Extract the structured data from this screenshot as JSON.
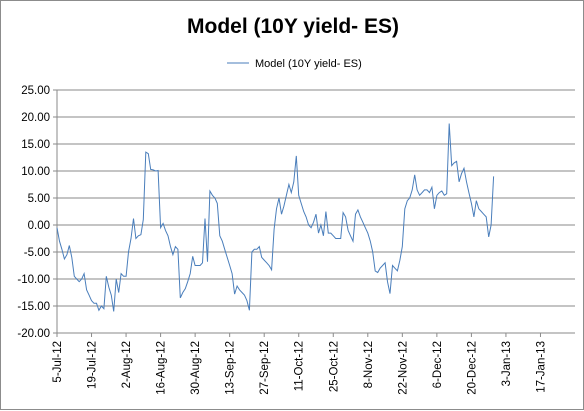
{
  "chart_data": {
    "type": "line",
    "title": "Model (10Y yield- ES)",
    "xlabel": "",
    "ylabel": "",
    "ylim": [
      -20,
      25
    ],
    "yticks": [
      "25.00",
      "20.00",
      "15.00",
      "10.00",
      "5.00",
      "0.00",
      "-5.00",
      "-10.00",
      "-15.00",
      "-20.00"
    ],
    "xtick_labels": [
      "5-Jul-12",
      "19-Jul-12",
      "2-Aug-12",
      "16-Aug-12",
      "30-Aug-12",
      "13-Sep-12",
      "27-Sep-12",
      "11-Oct-12",
      "25-Oct-12",
      "8-Nov-12",
      "22-Nov-12",
      "6-Dec-12",
      "20-Dec-12",
      "3-Jan-13",
      "17-Jan-13"
    ],
    "x_range": [
      "2012-07-05",
      "2013-01-31"
    ],
    "grid": "horizontal",
    "legend_position": "top-center",
    "series": [
      {
        "name": "Model (10Y yield- ES)",
        "color": "#4a7ebb",
        "points": [
          [
            "2012-07-05",
            -0.5
          ],
          [
            "2012-07-06",
            -3.0
          ],
          [
            "2012-07-07",
            -4.5
          ],
          [
            "2012-07-08",
            -6.3
          ],
          [
            "2012-07-09",
            -5.5
          ],
          [
            "2012-07-10",
            -3.8
          ],
          [
            "2012-07-11",
            -6.0
          ],
          [
            "2012-07-12",
            -9.5
          ],
          [
            "2012-07-13",
            -10.0
          ],
          [
            "2012-07-14",
            -10.5
          ],
          [
            "2012-07-15",
            -10.0
          ],
          [
            "2012-07-16",
            -9.0
          ],
          [
            "2012-07-17",
            -12.0
          ],
          [
            "2012-07-18",
            -13.0
          ],
          [
            "2012-07-19",
            -14.0
          ],
          [
            "2012-07-20",
            -14.5
          ],
          [
            "2012-07-21",
            -14.5
          ],
          [
            "2012-07-22",
            -15.8
          ],
          [
            "2012-07-23",
            -15.0
          ],
          [
            "2012-07-24",
            -15.5
          ],
          [
            "2012-07-25",
            -9.5
          ],
          [
            "2012-07-26",
            -11.5
          ],
          [
            "2012-07-27",
            -13.0
          ],
          [
            "2012-07-28",
            -16.0
          ],
          [
            "2012-07-29",
            -10.0
          ],
          [
            "2012-07-30",
            -12.5
          ],
          [
            "2012-07-31",
            -9.0
          ],
          [
            "2012-08-01",
            -9.5
          ],
          [
            "2012-08-02",
            -9.5
          ],
          [
            "2012-08-03",
            -5.0
          ],
          [
            "2012-08-04",
            -2.5
          ],
          [
            "2012-08-05",
            1.2
          ],
          [
            "2012-08-06",
            -2.5
          ],
          [
            "2012-08-07",
            -2.0
          ],
          [
            "2012-08-08",
            -1.8
          ],
          [
            "2012-08-09",
            1.0
          ],
          [
            "2012-08-10",
            13.5
          ],
          [
            "2012-08-11",
            13.2
          ],
          [
            "2012-08-12",
            10.3
          ],
          [
            "2012-08-13",
            10.2
          ],
          [
            "2012-08-14",
            10.0
          ],
          [
            "2012-08-15",
            10.1
          ],
          [
            "2012-08-16",
            -0.5
          ],
          [
            "2012-08-17",
            0.3
          ],
          [
            "2012-08-18",
            -1.0
          ],
          [
            "2012-08-19",
            -2.0
          ],
          [
            "2012-08-20",
            -4.0
          ],
          [
            "2012-08-21",
            -5.5
          ],
          [
            "2012-08-22",
            -4.0
          ],
          [
            "2012-08-23",
            -4.5
          ],
          [
            "2012-08-24",
            -13.5
          ],
          [
            "2012-08-25",
            -12.5
          ],
          [
            "2012-08-26",
            -11.8
          ],
          [
            "2012-08-27",
            -10.5
          ],
          [
            "2012-08-28",
            -9.0
          ],
          [
            "2012-08-29",
            -5.8
          ],
          [
            "2012-08-30",
            -7.5
          ],
          [
            "2012-08-31",
            -7.5
          ],
          [
            "2012-09-01",
            -7.5
          ],
          [
            "2012-09-02",
            -7.0
          ],
          [
            "2012-09-03",
            1.2
          ],
          [
            "2012-09-04",
            -6.8
          ],
          [
            "2012-09-05",
            6.3
          ],
          [
            "2012-09-06",
            5.5
          ],
          [
            "2012-09-07",
            5.0
          ],
          [
            "2012-09-08",
            4.0
          ],
          [
            "2012-09-09",
            -2.0
          ],
          [
            "2012-09-10",
            -3.0
          ],
          [
            "2012-09-11",
            -4.5
          ],
          [
            "2012-09-12",
            -6.0
          ],
          [
            "2012-09-13",
            -7.5
          ],
          [
            "2012-09-14",
            -9.0
          ],
          [
            "2012-09-15",
            -12.8
          ],
          [
            "2012-09-16",
            -11.3
          ],
          [
            "2012-09-17",
            -12.0
          ],
          [
            "2012-09-18",
            -12.5
          ],
          [
            "2012-09-19",
            -13.0
          ],
          [
            "2012-09-20",
            -14.0
          ],
          [
            "2012-09-21",
            -15.8
          ],
          [
            "2012-09-22",
            -5.0
          ],
          [
            "2012-09-23",
            -4.5
          ],
          [
            "2012-09-24",
            -4.5
          ],
          [
            "2012-09-25",
            -4.0
          ],
          [
            "2012-09-26",
            -6.0
          ],
          [
            "2012-09-27",
            -6.5
          ],
          [
            "2012-09-28",
            -7.0
          ],
          [
            "2012-09-29",
            -7.5
          ],
          [
            "2012-09-30",
            -8.3
          ],
          [
            "2012-10-01",
            -0.8
          ],
          [
            "2012-10-02",
            3.0
          ],
          [
            "2012-10-03",
            5.0
          ],
          [
            "2012-10-04",
            2.0
          ],
          [
            "2012-10-05",
            3.5
          ],
          [
            "2012-10-06",
            5.5
          ],
          [
            "2012-10-07",
            7.5
          ],
          [
            "2012-10-08",
            6.0
          ],
          [
            "2012-10-09",
            8.0
          ],
          [
            "2012-10-10",
            12.8
          ],
          [
            "2012-10-11",
            5.5
          ],
          [
            "2012-10-12",
            4.0
          ],
          [
            "2012-10-13",
            2.5
          ],
          [
            "2012-10-14",
            1.5
          ],
          [
            "2012-10-15",
            0.0
          ],
          [
            "2012-10-16",
            -0.5
          ],
          [
            "2012-10-17",
            0.5
          ],
          [
            "2012-10-18",
            2.0
          ],
          [
            "2012-10-19",
            -1.5
          ],
          [
            "2012-10-20",
            0.0
          ],
          [
            "2012-10-21",
            -2.0
          ],
          [
            "2012-10-22",
            2.5
          ],
          [
            "2012-10-23",
            -1.5
          ],
          [
            "2012-10-24",
            -1.5
          ],
          [
            "2012-10-25",
            -2.0
          ],
          [
            "2012-10-26",
            -2.5
          ],
          [
            "2012-10-27",
            -2.5
          ],
          [
            "2012-10-28",
            -2.5
          ],
          [
            "2012-10-29",
            2.3
          ],
          [
            "2012-10-30",
            1.5
          ],
          [
            "2012-10-31",
            -1.0
          ],
          [
            "2012-11-01",
            -2.0
          ],
          [
            "2012-11-02",
            -3.0
          ],
          [
            "2012-11-03",
            2.0
          ],
          [
            "2012-11-04",
            2.8
          ],
          [
            "2012-11-05",
            1.5
          ],
          [
            "2012-11-06",
            0.5
          ],
          [
            "2012-11-07",
            -0.5
          ],
          [
            "2012-11-08",
            -1.5
          ],
          [
            "2012-11-09",
            -3.0
          ],
          [
            "2012-11-10",
            -5.0
          ],
          [
            "2012-11-11",
            -8.5
          ],
          [
            "2012-11-12",
            -8.8
          ],
          [
            "2012-11-13",
            -8.0
          ],
          [
            "2012-11-14",
            -7.5
          ],
          [
            "2012-11-15",
            -7.0
          ],
          [
            "2012-11-16",
            -10.5
          ],
          [
            "2012-11-17",
            -12.7
          ],
          [
            "2012-11-18",
            -7.5
          ],
          [
            "2012-11-19",
            -8.0
          ],
          [
            "2012-11-20",
            -8.5
          ],
          [
            "2012-11-21",
            -6.5
          ],
          [
            "2012-11-22",
            -4.0
          ],
          [
            "2012-11-23",
            3.0
          ],
          [
            "2012-11-24",
            4.5
          ],
          [
            "2012-11-25",
            5.0
          ],
          [
            "2012-11-26",
            6.5
          ],
          [
            "2012-11-27",
            9.3
          ],
          [
            "2012-11-28",
            6.5
          ],
          [
            "2012-11-29",
            5.5
          ],
          [
            "2012-11-30",
            6.0
          ],
          [
            "2012-12-01",
            6.5
          ],
          [
            "2012-12-02",
            6.5
          ],
          [
            "2012-12-03",
            6.0
          ],
          [
            "2012-12-04",
            7.0
          ],
          [
            "2012-12-05",
            3.0
          ],
          [
            "2012-12-06",
            5.5
          ],
          [
            "2012-12-07",
            6.0
          ],
          [
            "2012-12-08",
            6.3
          ],
          [
            "2012-12-09",
            5.5
          ],
          [
            "2012-12-10",
            5.8
          ],
          [
            "2012-12-11",
            18.8
          ],
          [
            "2012-12-12",
            11.0
          ],
          [
            "2012-12-13",
            11.5
          ],
          [
            "2012-12-14",
            11.8
          ],
          [
            "2012-12-15",
            8.0
          ],
          [
            "2012-12-16",
            9.5
          ],
          [
            "2012-12-17",
            10.5
          ],
          [
            "2012-12-18",
            8.0
          ],
          [
            "2012-12-19",
            6.0
          ],
          [
            "2012-12-20",
            4.0
          ],
          [
            "2012-12-21",
            1.5
          ],
          [
            "2012-12-22",
            4.5
          ],
          [
            "2012-12-23",
            3.0
          ],
          [
            "2012-12-24",
            2.5
          ],
          [
            "2012-12-25",
            2.0
          ],
          [
            "2012-12-26",
            1.5
          ],
          [
            "2012-12-27",
            -2.2
          ],
          [
            "2012-12-28",
            0.0
          ],
          [
            "2012-12-29",
            9.0
          ]
        ]
      }
    ]
  }
}
